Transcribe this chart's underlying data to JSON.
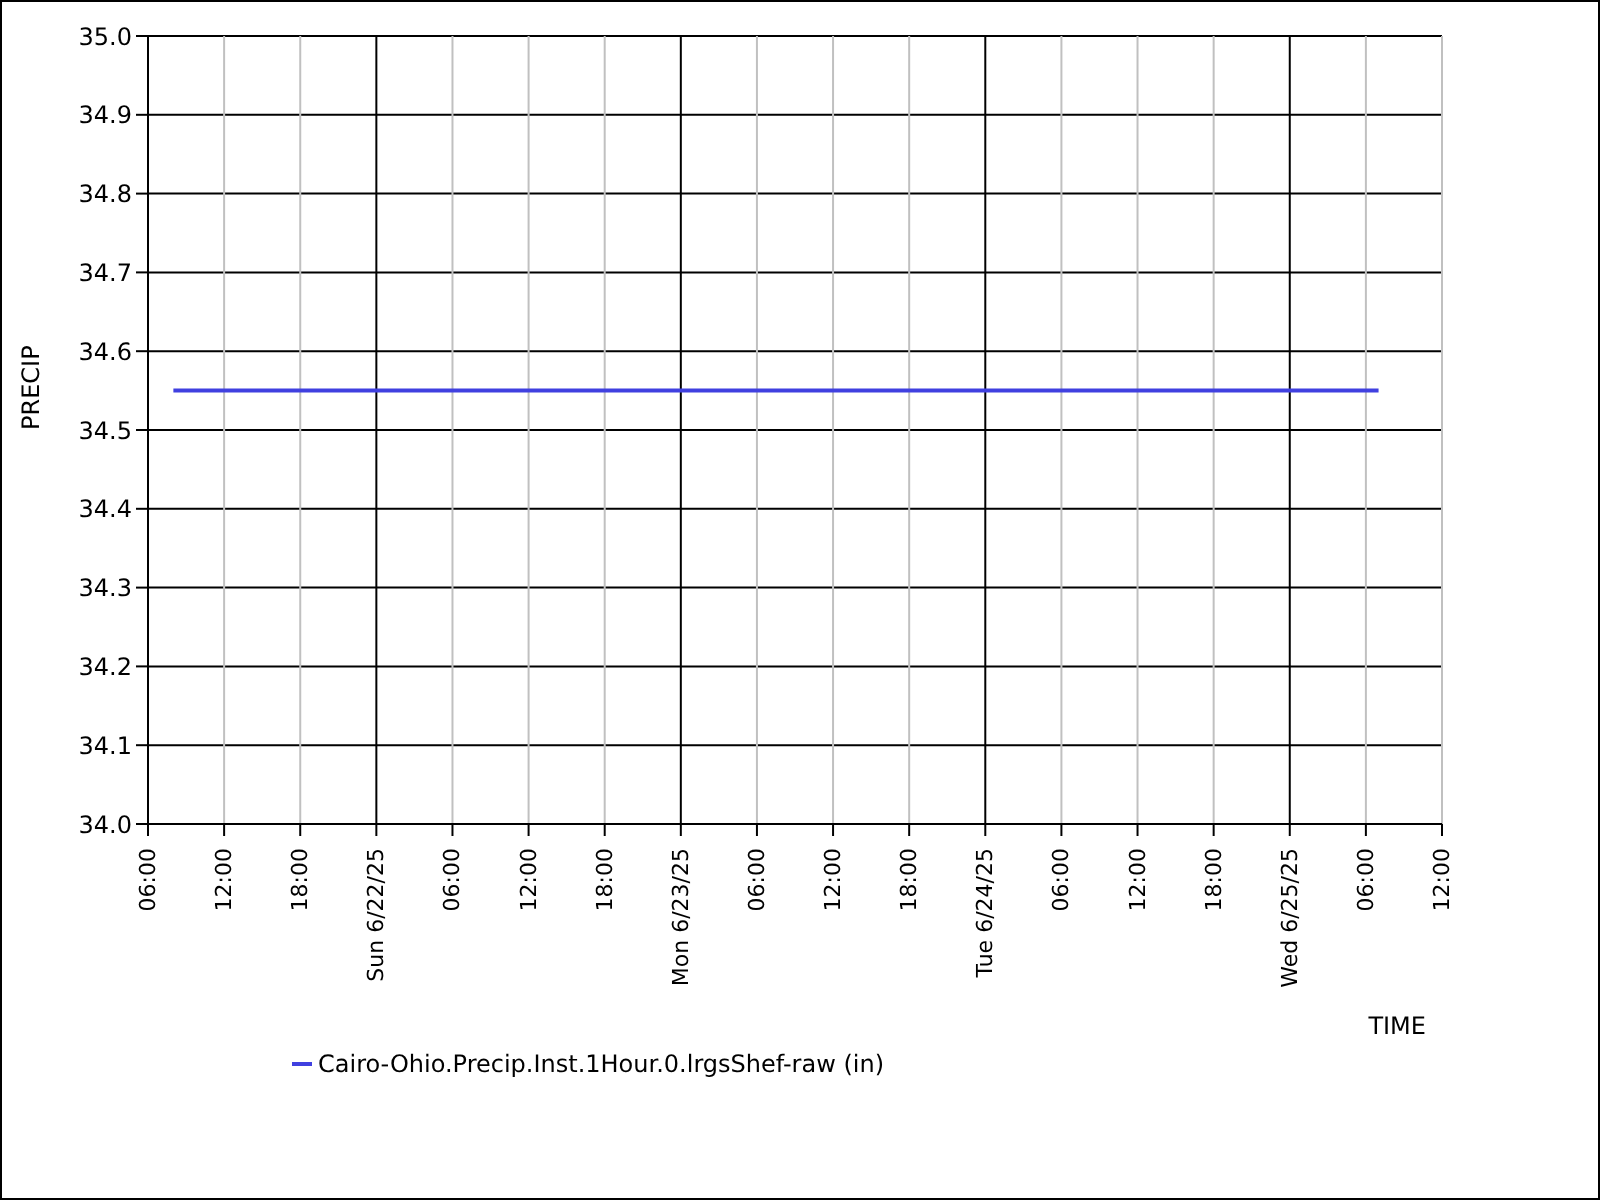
{
  "chart_data": {
    "type": "line",
    "xlabel": "TIME",
    "ylabel": "PRECIP",
    "x": [
      "--06-21T08:00",
      "--06-25T07:00"
    ],
    "series": [
      {
        "name": "Cairo-Ohio.Precip.Inst.1Hour.0.lrgsShef-raw (in)",
        "color": "#4040e0",
        "values": [
          34.55,
          34.55
        ]
      }
    ],
    "xlim": [
      "--06-21T06:00",
      "--06-25T12:00"
    ],
    "xticks": [
      {
        "value": "--06-21T06:00",
        "label": "06:00"
      },
      {
        "value": "--06-21T12:00",
        "label": "12:00"
      },
      {
        "value": "--06-21T18:00",
        "label": "18:00"
      },
      {
        "value": "--06-22T00:00",
        "label": "Sun 6/22/25"
      },
      {
        "value": "--06-22T06:00",
        "label": "06:00"
      },
      {
        "value": "--06-22T12:00",
        "label": "12:00"
      },
      {
        "value": "--06-22T18:00",
        "label": "18:00"
      },
      {
        "value": "--06-23T00:00",
        "label": "Mon 6/23/25"
      },
      {
        "value": "--06-23T06:00",
        "label": "06:00"
      },
      {
        "value": "--06-23T12:00",
        "label": "12:00"
      },
      {
        "value": "--06-23T18:00",
        "label": "18:00"
      },
      {
        "value": "--06-24T00:00",
        "label": "Tue 6/24/25"
      },
      {
        "value": "--06-24T06:00",
        "label": "06:00"
      },
      {
        "value": "--06-24T12:00",
        "label": "12:00"
      },
      {
        "value": "--06-24T18:00",
        "label": "18:00"
      },
      {
        "value": "--06-25T00:00",
        "label": "Wed 6/25/25"
      },
      {
        "value": "--06-25T06:00",
        "label": "06:00"
      },
      {
        "value": "--06-25T12:00",
        "label": "12:00"
      }
    ],
    "ylim": [
      34.0,
      35.0
    ],
    "yticks": [
      {
        "value": 34.0,
        "label": "34.0"
      },
      {
        "value": 34.1,
        "label": "34.1"
      },
      {
        "value": 34.2,
        "label": "34.2"
      },
      {
        "value": 34.3,
        "label": "34.3"
      },
      {
        "value": 34.4,
        "label": "34.4"
      },
      {
        "value": 34.5,
        "label": "34.5"
      },
      {
        "value": 34.6,
        "label": "34.6"
      },
      {
        "value": 34.7,
        "label": "34.7"
      },
      {
        "value": 34.8,
        "label": "34.8"
      },
      {
        "value": 34.9,
        "label": "34.9"
      },
      {
        "value": 35.0,
        "label": "35.0"
      }
    ],
    "grid": true,
    "legend": "bottom",
    "marker": "none",
    "line_style": "solid"
  }
}
